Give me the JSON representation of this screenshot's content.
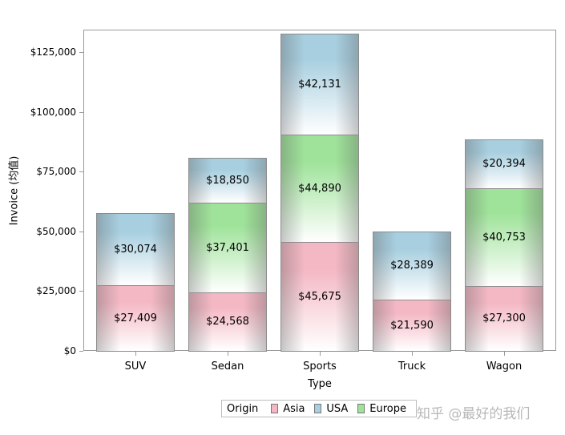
{
  "chart_data": {
    "type": "bar",
    "stacked": true,
    "title": "",
    "xlabel": "Type",
    "ylabel": "Invoice (均值)",
    "categories": [
      "SUV",
      "Sedan",
      "Sports",
      "Truck",
      "Wagon"
    ],
    "series": [
      {
        "name": "Asia",
        "color": "#f4b8c4",
        "values": [
          27409,
          24568,
          45675,
          21590,
          27300
        ]
      },
      {
        "name": "Europe",
        "color": "#9fe39a",
        "values": [
          null,
          37401,
          44890,
          null,
          40753
        ]
      },
      {
        "name": "USA",
        "color": "#a8cfe0",
        "values": [
          30074,
          18850,
          42131,
          28389,
          20394
        ]
      }
    ],
    "data_labels": [
      [
        "$27,409",
        "",
        "$30,074"
      ],
      [
        "$24,568",
        "$37,401",
        "$18,850"
      ],
      [
        "$45,675",
        "$44,890",
        "$42,131"
      ],
      [
        "$21,590",
        "",
        "$28,389"
      ],
      [
        "$27,300",
        "$40,753",
        "$20,394"
      ]
    ],
    "yticks": [
      "$0",
      "$25,000",
      "$50,000",
      "$75,000",
      "$100,000",
      "$125,000"
    ],
    "ytick_values": [
      0,
      25000,
      50000,
      75000,
      100000,
      125000
    ],
    "ylim": [
      0,
      134000
    ],
    "grid": false,
    "legend_position": "bottom"
  },
  "legend": {
    "title": "Origin",
    "items": [
      {
        "label": "Asia",
        "color": "#f4b8c4"
      },
      {
        "label": "USA",
        "color": "#a8cfe0"
      },
      {
        "label": "Europe",
        "color": "#9fe39a"
      }
    ]
  },
  "watermark": "知乎 @最好的我们"
}
